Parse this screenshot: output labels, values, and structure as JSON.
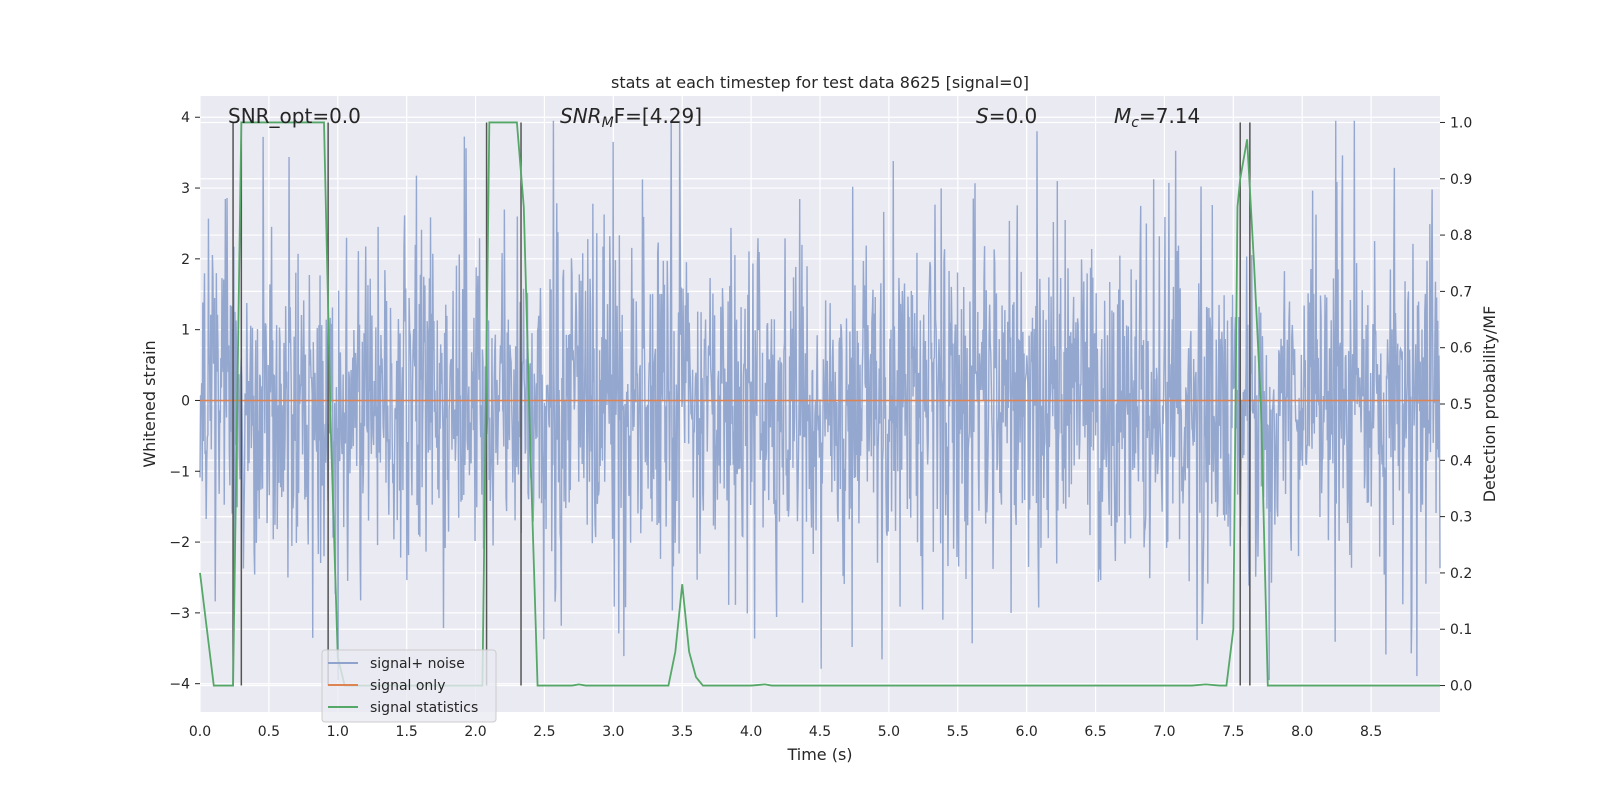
{
  "chart_data": {
    "type": "line",
    "title": "stats at each timestep for test data 8625 [signal=0]",
    "xlabel": "Time (s)",
    "ylabel_left": "Whitened strain",
    "ylabel_right": "Detection probability/MF",
    "xlim": [
      0.0,
      9.0
    ],
    "ylim_left": [
      -4.4,
      4.3
    ],
    "ylim_right": [
      -0.047,
      1.047
    ],
    "x_ticks": [
      "0.0",
      "0.5",
      "1.0",
      "1.5",
      "2.0",
      "2.5",
      "3.0",
      "3.5",
      "4.0",
      "4.5",
      "5.0",
      "5.5",
      "6.0",
      "6.5",
      "7.0",
      "7.5",
      "8.0",
      "8.5"
    ],
    "y_ticks_left": [
      "−4",
      "−3",
      "−2",
      "−1",
      "0",
      "1",
      "2",
      "3",
      "4"
    ],
    "y_ticks_right": [
      "0.0",
      "0.1",
      "0.2",
      "0.3",
      "0.4",
      "0.5",
      "0.6",
      "0.7",
      "0.8",
      "0.9",
      "1.0"
    ],
    "grid": true,
    "legend_position": "lower-left",
    "annotations": {
      "snr_opt": "SNR_opt=0.0",
      "snr_mf_var": "SNR",
      "snr_mf_sub": "M",
      "snr_mf_rest": "F=[4.29]",
      "s_var": "S",
      "s_rest": "=0.0",
      "mc_var": "M",
      "mc_sub": "c",
      "mc_rest": "=7.14"
    },
    "series": [
      {
        "name": "signal+ noise",
        "color": "#8fa3cc",
        "axis": "left",
        "description": "whitened noise, amplitude approx ±2 to ±4",
        "envelope_max": 3.95,
        "envelope_min": -3.95
      },
      {
        "name": "signal only",
        "color": "#dd8452",
        "axis": "left",
        "x": [
          0.0,
          9.0
        ],
        "y": [
          0.0,
          0.0
        ]
      },
      {
        "name": "signal statistics",
        "color": "#55a868",
        "axis": "right",
        "x": [
          0.0,
          0.05,
          0.1,
          0.15,
          0.2,
          0.24,
          0.3,
          0.35,
          0.4,
          0.5,
          0.6,
          0.7,
          0.8,
          0.9,
          0.95,
          1.0,
          1.05,
          1.1,
          1.5,
          2.0,
          2.05,
          2.1,
          2.15,
          2.2,
          2.3,
          2.35,
          2.4,
          2.45,
          2.5,
          2.6,
          2.7,
          2.75,
          2.8,
          3.0,
          3.2,
          3.4,
          3.45,
          3.5,
          3.55,
          3.6,
          3.65,
          3.7,
          3.8,
          4.0,
          4.1,
          4.15,
          4.2,
          5.0,
          6.0,
          6.5,
          7.0,
          7.2,
          7.3,
          7.4,
          7.45,
          7.5,
          7.53,
          7.55,
          7.6,
          7.65,
          7.7,
          7.75,
          7.8,
          8.0,
          8.5,
          9.0
        ],
        "y": [
          0.2,
          0.1,
          0.0,
          0.0,
          0.0,
          0.0,
          1.0,
          1.0,
          1.0,
          1.0,
          1.0,
          1.0,
          1.0,
          1.0,
          0.45,
          0.05,
          0.0,
          0.0,
          0.0,
          0.0,
          0.0,
          1.0,
          1.0,
          1.0,
          1.0,
          0.85,
          0.4,
          0.0,
          0.0,
          0.0,
          0.0,
          0.002,
          0.0,
          0.0,
          0.0,
          0.0,
          0.06,
          0.18,
          0.06,
          0.015,
          0.0,
          0.0,
          0.0,
          0.0,
          0.002,
          0.0,
          0.0,
          0.0,
          0.0,
          0.0,
          0.0,
          0.0,
          0.002,
          0.0,
          0.0,
          0.1,
          0.85,
          0.9,
          0.97,
          0.75,
          0.5,
          0.0,
          0.0,
          0.0,
          0.0,
          0.0
        ]
      }
    ],
    "vlines": [
      0.24,
      0.3,
      0.93,
      2.08,
      2.33,
      7.55,
      7.62
    ]
  }
}
